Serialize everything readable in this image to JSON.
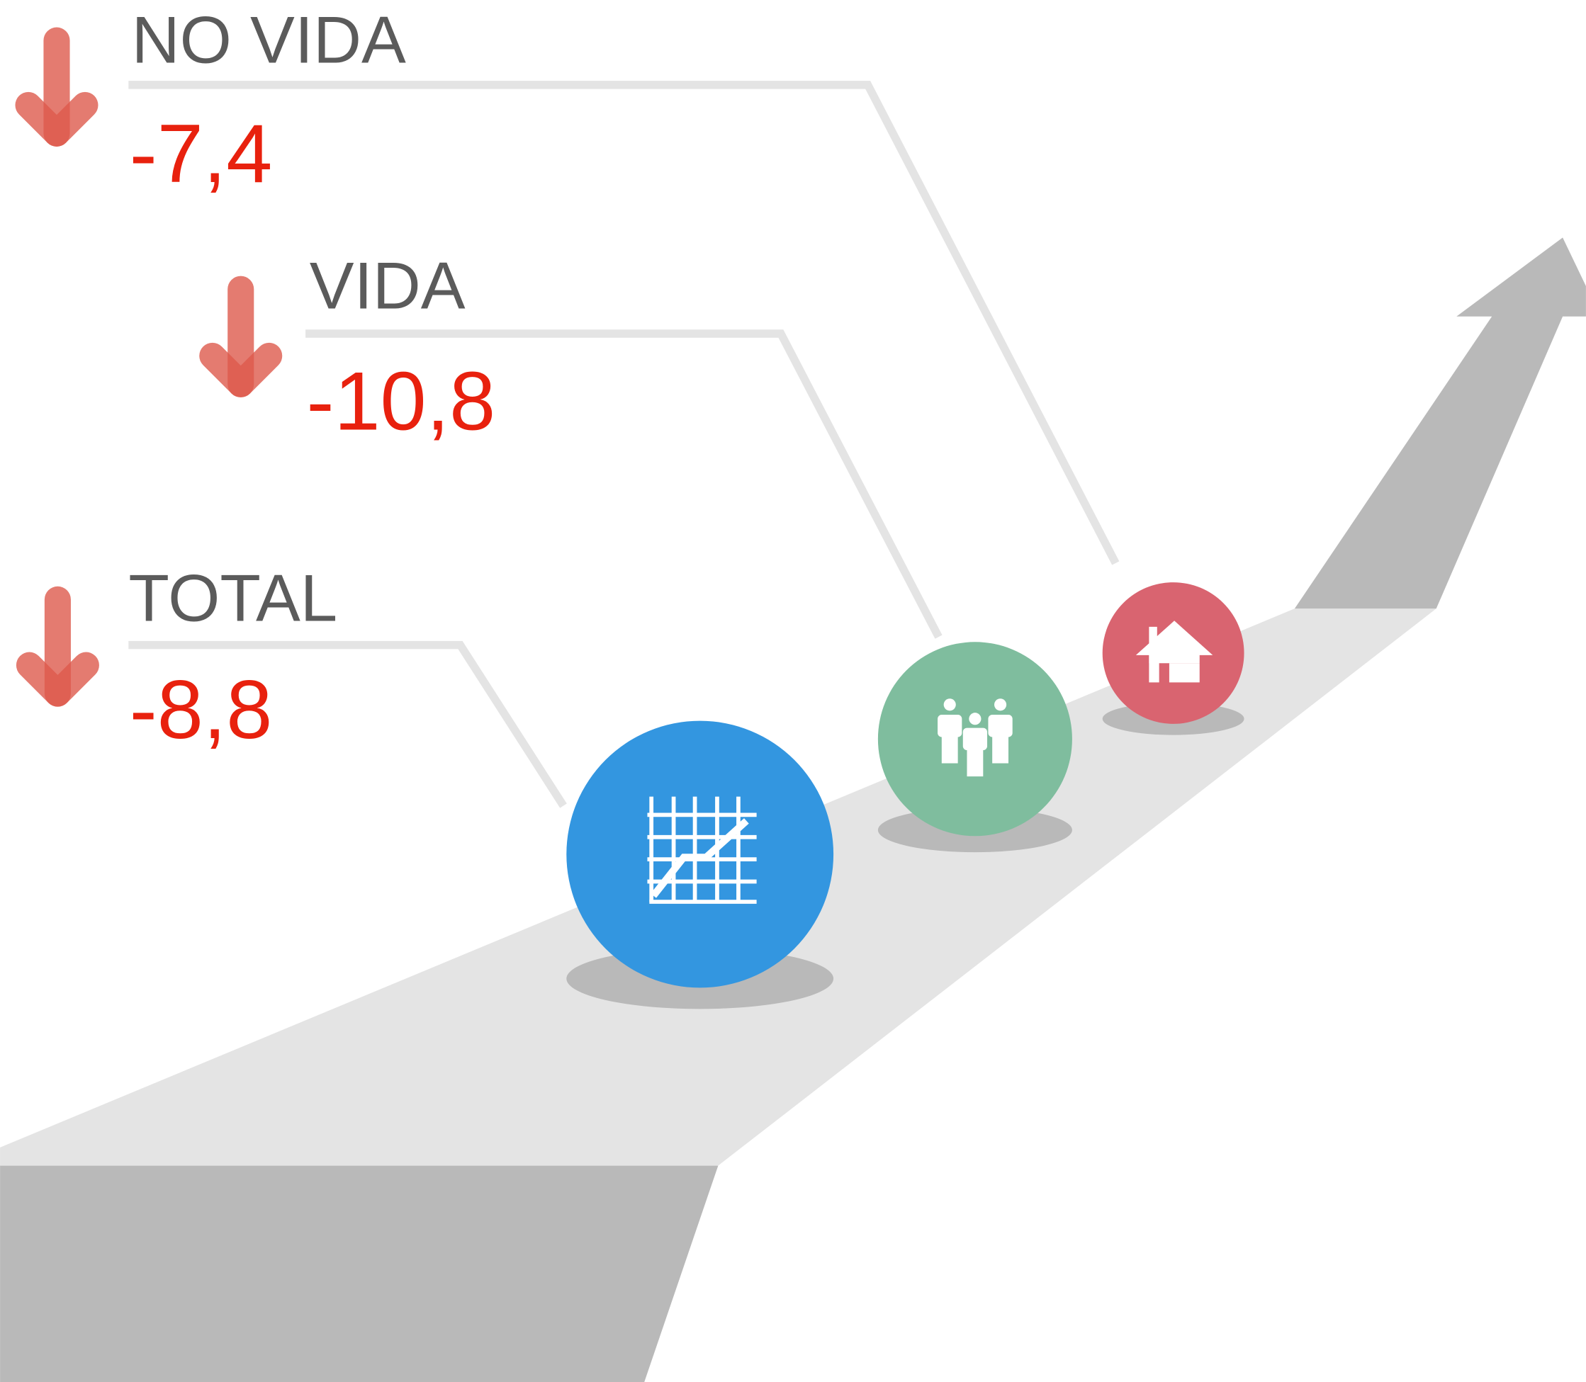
{
  "items": [
    {
      "label": "NO VIDA",
      "value": "-7,4"
    },
    {
      "label": "VIDA",
      "value": "-10,8"
    },
    {
      "label": "TOTAL",
      "value": "-8,8"
    }
  ]
}
